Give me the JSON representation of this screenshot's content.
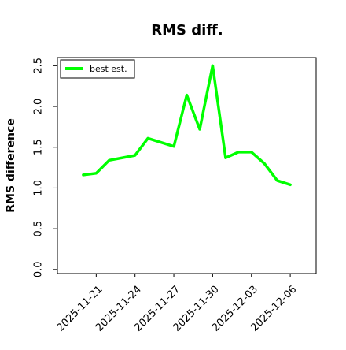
{
  "chart_data": {
    "type": "line",
    "title": "RMS diff.",
    "xlabel": "",
    "ylabel": "RMS difference",
    "x": [
      "2025-11-20",
      "2025-11-21",
      "2025-11-22",
      "2025-11-24",
      "2025-11-25",
      "2025-11-27",
      "2025-11-28",
      "2025-11-29",
      "2025-11-30",
      "2025-12-01",
      "2025-12-02",
      "2025-12-03",
      "2025-12-04",
      "2025-12-05",
      "2025-12-06"
    ],
    "series": [
      {
        "name": "best est.",
        "color": "#00ff00",
        "values": [
          1.16,
          1.18,
          1.34,
          1.4,
          1.61,
          1.51,
          2.14,
          1.72,
          2.5,
          1.37,
          1.44,
          1.44,
          1.3,
          1.09,
          1.04
        ]
      }
    ],
    "xticks": [
      "2025-11-21",
      "2025-11-24",
      "2025-11-27",
      "2025-11-30",
      "2025-12-03",
      "2025-12-06"
    ],
    "yticks": [
      "0.0",
      "0.5",
      "1.0",
      "1.5",
      "2.0",
      "2.5"
    ],
    "xlim": [
      "2025-11-18",
      "2025-12-08"
    ],
    "ylim": [
      -0.05,
      2.6
    ],
    "grid": false,
    "legend": "top-left"
  }
}
